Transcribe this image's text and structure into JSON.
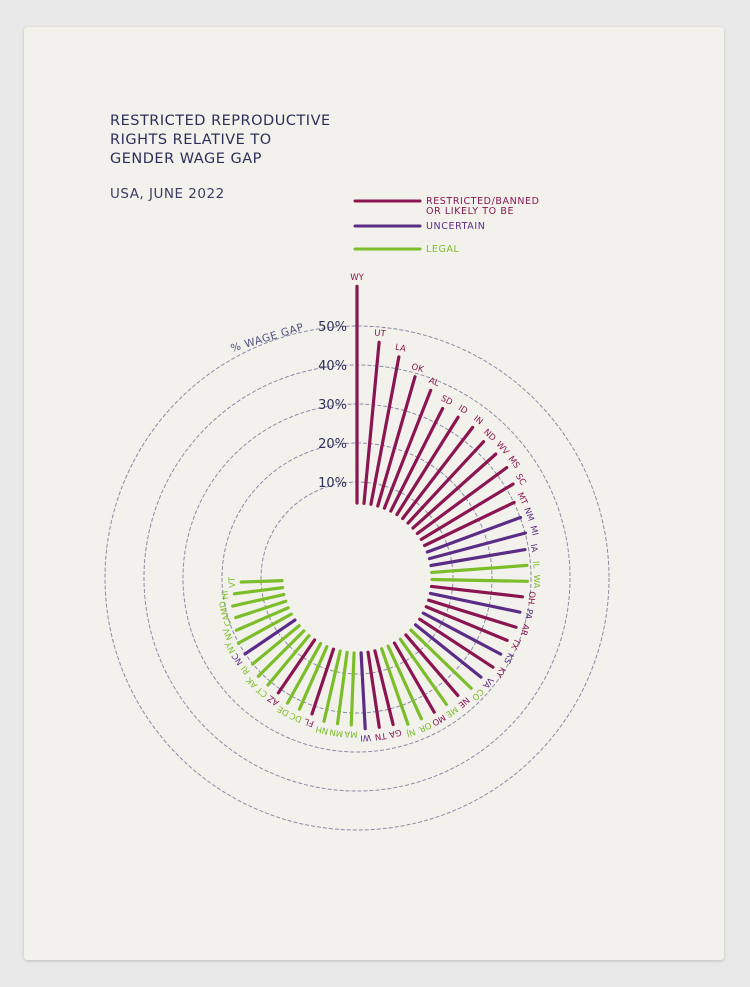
{
  "header": {
    "title_lines": [
      "RESTRICTED REPRODUCTIVE",
      "RIGHTS RELATIVE TO",
      "GENDER WAGE GAP"
    ],
    "subtitle": "USA, JUNE 2022"
  },
  "legend": [
    {
      "label_lines": [
        "RESTRICTED/BANNED",
        "OR LIKELY TO BE"
      ],
      "color": "#8a1551"
    },
    {
      "label_lines": [
        "UNCERTAIN"
      ],
      "color": "#5b2c86"
    },
    {
      "label_lines": [
        "LEGAL"
      ],
      "color": "#7cbd2a"
    }
  ],
  "colors": {
    "restricted": "#8a1551",
    "uncertain": "#5b2c86",
    "legal": "#7cbd2a",
    "rings": "#8a8ca6",
    "text": "#2d2f5a"
  },
  "chart_data": {
    "type": "radial-bar",
    "title": "Restricted Reproductive Rights Relative to Gender Wage Gap",
    "subtitle": "USA, June 2022",
    "axis_label": "% WAGE GAP",
    "ticks": [
      "10%",
      "20%",
      "30%",
      "40%",
      "50%"
    ],
    "tick_values": [
      10,
      20,
      30,
      40,
      50
    ],
    "range": [
      0,
      50
    ],
    "direction": "clockwise from top",
    "legend": [
      "Restricted/Banned or likely to be",
      "Uncertain",
      "Legal"
    ],
    "states": [
      {
        "state": "WY",
        "value": 54,
        "status": "restricted"
      },
      {
        "state": "UT",
        "value": 43,
        "status": "restricted"
      },
      {
        "state": "LA",
        "value": 40,
        "status": "restricted"
      },
      {
        "state": "OK",
        "value": 36,
        "status": "restricted"
      },
      {
        "state": "AL",
        "value": 34,
        "status": "restricted"
      },
      {
        "state": "SD",
        "value": 31,
        "status": "restricted"
      },
      {
        "state": "ID",
        "value": 31,
        "status": "restricted"
      },
      {
        "state": "IN",
        "value": 31,
        "status": "restricted"
      },
      {
        "state": "ND",
        "value": 30,
        "status": "restricted"
      },
      {
        "state": "WV",
        "value": 30,
        "status": "restricted"
      },
      {
        "state": "MS",
        "value": 30,
        "status": "restricted"
      },
      {
        "state": "SC",
        "value": 29,
        "status": "restricted"
      },
      {
        "state": "MT",
        "value": 27,
        "status": "restricted"
      },
      {
        "state": "NM",
        "value": 27,
        "status": "uncertain"
      },
      {
        "state": "MI",
        "value": 27,
        "status": "uncertain"
      },
      {
        "state": "IA",
        "value": 26,
        "status": "uncertain"
      },
      {
        "state": "IL",
        "value": 26,
        "status": "legal"
      },
      {
        "state": "WA",
        "value": 26,
        "status": "legal"
      },
      {
        "state": "OH",
        "value": 25,
        "status": "restricted"
      },
      {
        "state": "PA",
        "value": 25,
        "status": "uncertain"
      },
      {
        "state": "AR",
        "value": 25,
        "status": "restricted"
      },
      {
        "state": "TX",
        "value": 24,
        "status": "restricted"
      },
      {
        "state": "KS",
        "value": 24,
        "status": "uncertain"
      },
      {
        "state": "KY",
        "value": 24,
        "status": "restricted"
      },
      {
        "state": "VA",
        "value": 23,
        "status": "uncertain"
      },
      {
        "state": "CO",
        "value": 23,
        "status": "legal"
      },
      {
        "state": "NE",
        "value": 22,
        "status": "restricted"
      },
      {
        "state": "ME",
        "value": 22,
        "status": "legal"
      },
      {
        "state": "MO",
        "value": 22,
        "status": "restricted"
      },
      {
        "state": "OR",
        "value": 22,
        "status": "legal"
      },
      {
        "state": "NJ",
        "value": 22,
        "status": "legal"
      },
      {
        "state": "GA",
        "value": 21,
        "status": "restricted"
      },
      {
        "state": "TN",
        "value": 21,
        "status": "restricted"
      },
      {
        "state": "WI",
        "value": 21,
        "status": "uncertain"
      },
      {
        "state": "MA",
        "value": 20,
        "status": "legal"
      },
      {
        "state": "MN",
        "value": 20,
        "status": "legal"
      },
      {
        "state": "NH",
        "value": 20,
        "status": "legal"
      },
      {
        "state": "FL",
        "value": 19,
        "status": "restricted"
      },
      {
        "state": "DC",
        "value": 19,
        "status": "legal"
      },
      {
        "state": "DE",
        "value": 19,
        "status": "legal"
      },
      {
        "state": "AZ",
        "value": 18,
        "status": "restricted"
      },
      {
        "state": "CT",
        "value": 18,
        "status": "legal"
      },
      {
        "state": "AK",
        "value": 18,
        "status": "legal"
      },
      {
        "state": "RI",
        "value": 17,
        "status": "legal"
      },
      {
        "state": "NC",
        "value": 17,
        "status": "uncertain"
      },
      {
        "state": "NY",
        "value": 17,
        "status": "legal"
      },
      {
        "state": "NV",
        "value": 16,
        "status": "legal"
      },
      {
        "state": "CA",
        "value": 15,
        "status": "legal"
      },
      {
        "state": "MD",
        "value": 15,
        "status": "legal"
      },
      {
        "state": "HI",
        "value": 14,
        "status": "legal"
      },
      {
        "state": "VT",
        "value": 12,
        "status": "legal"
      }
    ]
  }
}
